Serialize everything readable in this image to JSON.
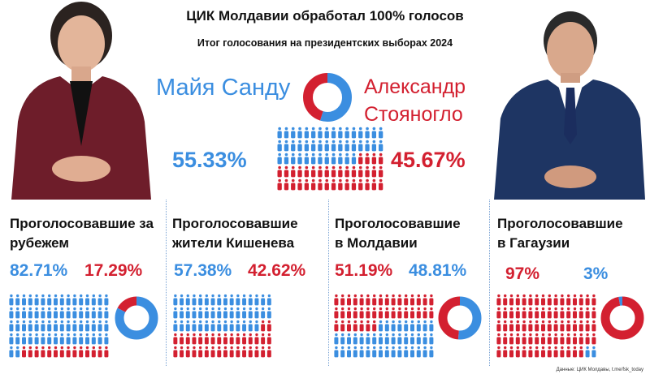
{
  "header": {
    "title": "ЦИК Молдавии обработал 100% голосов",
    "subtitle": "Итог голосования на президентских выборах 2024"
  },
  "candidates": {
    "left_name": "Майя Санду",
    "right_name_line1": "Александр",
    "right_name_line2": "Стояногло"
  },
  "colors": {
    "sandu": "#3b8ee0",
    "stoianoglo": "#d32030"
  },
  "chart_data": [
    {
      "type": "pie",
      "title": "",
      "labels": [
        "Майя Санду",
        "Александр Стояногло"
      ],
      "values": [
        55.33,
        45.67
      ],
      "value_labels": [
        "55.33%",
        "45.67%"
      ]
    },
    {
      "type": "pie",
      "title": "Проголосовавшие за рубежем",
      "labels": [
        "Майя Санду",
        "Александр Стояногло"
      ],
      "values": [
        82.71,
        17.29
      ],
      "value_labels": [
        "82.71%",
        "17.29%"
      ]
    },
    {
      "type": "pie",
      "title": "Проголосовавшие жители Кишенева",
      "labels": [
        "Майя Санду",
        "Александр Стояногло"
      ],
      "values": [
        57.38,
        42.62
      ],
      "value_labels": [
        "57.38%",
        "42.62%"
      ]
    },
    {
      "type": "pie",
      "title": "Проголосовавшие в Молдавии",
      "labels": [
        "Майя Санду",
        "Александр Стояногло"
      ],
      "values": [
        51.19,
        48.81
      ],
      "value_labels": [
        "51.19%",
        "48.81%"
      ]
    },
    {
      "type": "pie",
      "title": "Проголосовавшие в Гагаузии",
      "labels": [
        "Александр Стояногло",
        "Майя Санду"
      ],
      "values": [
        97,
        3
      ],
      "value_labels": [
        "97%",
        "3%"
      ]
    }
  ],
  "sections": [
    {
      "title_line1": "Проголосовавшие за",
      "title_line2": "рубежем",
      "pct_a": "82.71%",
      "pct_b": "17.29%"
    },
    {
      "title_line1": "Проголосовавшие",
      "title_line2": "жители Кишенева",
      "pct_a": "57.38%",
      "pct_b": "42.62%"
    },
    {
      "title_line1": "Проголосовавшие",
      "title_line2": "в Молдавии",
      "pct_a": "51.19%",
      "pct_b": "48.81%"
    },
    {
      "title_line1": "Проголосовавшие",
      "title_line2": "в Гагаузии",
      "pct_a": "97%",
      "pct_b": "3%"
    }
  ],
  "footnote": "Данные: ЦИК Молдавы, t.me/fsk_today"
}
